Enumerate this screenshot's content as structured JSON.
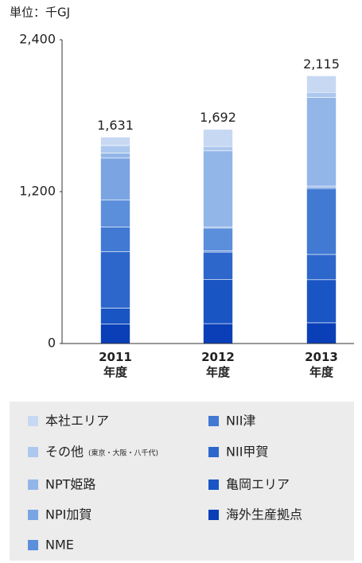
{
  "chart_data": {
    "type": "stacked_bar",
    "unit_label": "単位：千GJ",
    "categories": [
      "2011\n年度",
      "2012\n年度",
      "2013\n年度"
    ],
    "ylim": [
      0,
      2400
    ],
    "yticks": [
      0,
      {
        "value": 1200,
        "label": "1,200"
      },
      {
        "value": 2400,
        "label": "2,400"
      }
    ],
    "totals": [
      1631,
      1692,
      2115
    ],
    "total_labels": [
      "1,631",
      "1,692",
      "2,115"
    ],
    "series": [
      {
        "name": "本社エリア",
        "color": "#c7d8f2",
        "values": [
          66,
          135,
          131
        ]
      },
      {
        "name": "その他",
        "note": "(東京・大阪・八千代)",
        "color": "#adc8ee",
        "values": [
          60,
          35,
          40
        ]
      },
      {
        "name": "NPT姫路",
        "color": "#93b6e8",
        "values": [
          40,
          600,
          700
        ]
      },
      {
        "name": "NPI加賀",
        "color": "#7aa5e2",
        "values": [
          330,
          10,
          10
        ]
      },
      {
        "name": "NME",
        "color": "#5c8fdb",
        "values": [
          215,
          180,
          10
        ]
      },
      {
        "name": "NII津",
        "color": "#4179d3",
        "values": [
          195,
          10,
          520
        ]
      },
      {
        "name": "NII甲賀",
        "color": "#2d67cc",
        "values": [
          445,
          215,
          200
        ]
      },
      {
        "name": "亀岡エリア",
        "color": "#1a55c4",
        "values": [
          125,
          350,
          340
        ]
      },
      {
        "name": "海外生産拠点",
        "color": "#0a3fb8",
        "values": [
          155,
          157,
          164
        ]
      }
    ]
  }
}
